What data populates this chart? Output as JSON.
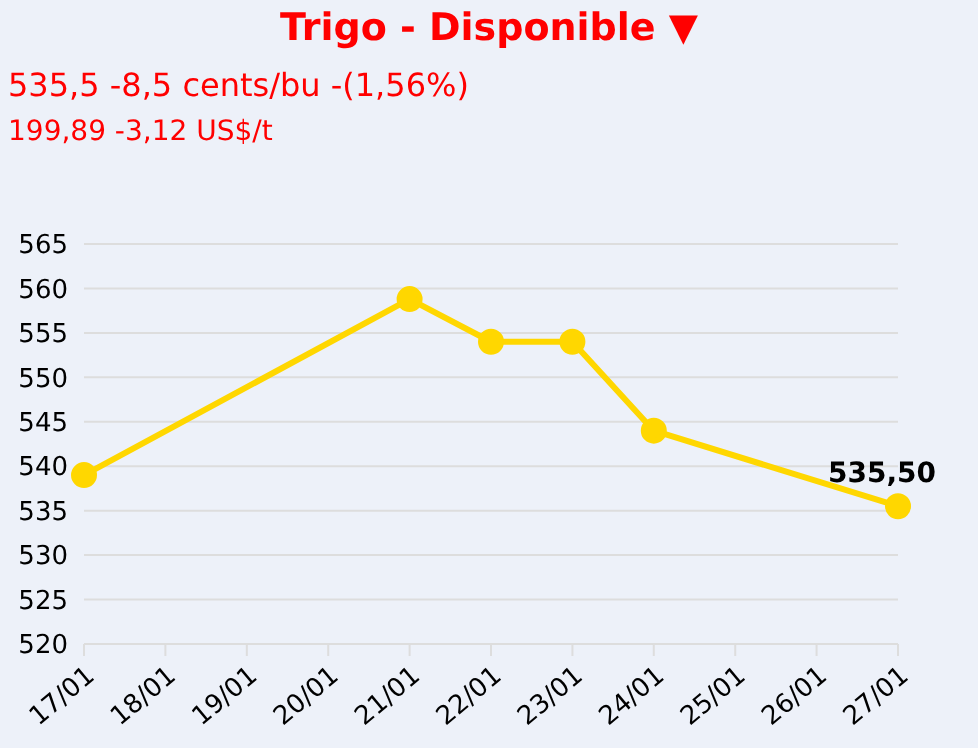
{
  "chart_data": {
    "type": "line",
    "title": "Trigo - Disponible ▼",
    "subtitle": "535,5 -8,5 cents/bu -(1,56%)",
    "annotations": [
      "199,89 -3,12 US$/t"
    ],
    "categories": [
      "17/01",
      "18/01",
      "19/01",
      "20/01",
      "21/01",
      "22/01",
      "23/01",
      "24/01",
      "25/01",
      "26/01",
      "27/01"
    ],
    "series": [
      {
        "color": "#ffd700",
        "values": [
          539,
          null,
          null,
          null,
          558.8,
          554,
          554,
          544,
          null,
          null,
          535.5
        ],
        "value_labels": [
          null,
          null,
          null,
          null,
          null,
          null,
          null,
          null,
          null,
          null,
          "535,50"
        ]
      }
    ],
    "ylim": [
      520,
      565
    ],
    "yticks": [
      520,
      525,
      530,
      535,
      540,
      545,
      550,
      555,
      560,
      565
    ],
    "grid": "y",
    "marker": "circle",
    "line_style": "solid",
    "legend": false
  }
}
